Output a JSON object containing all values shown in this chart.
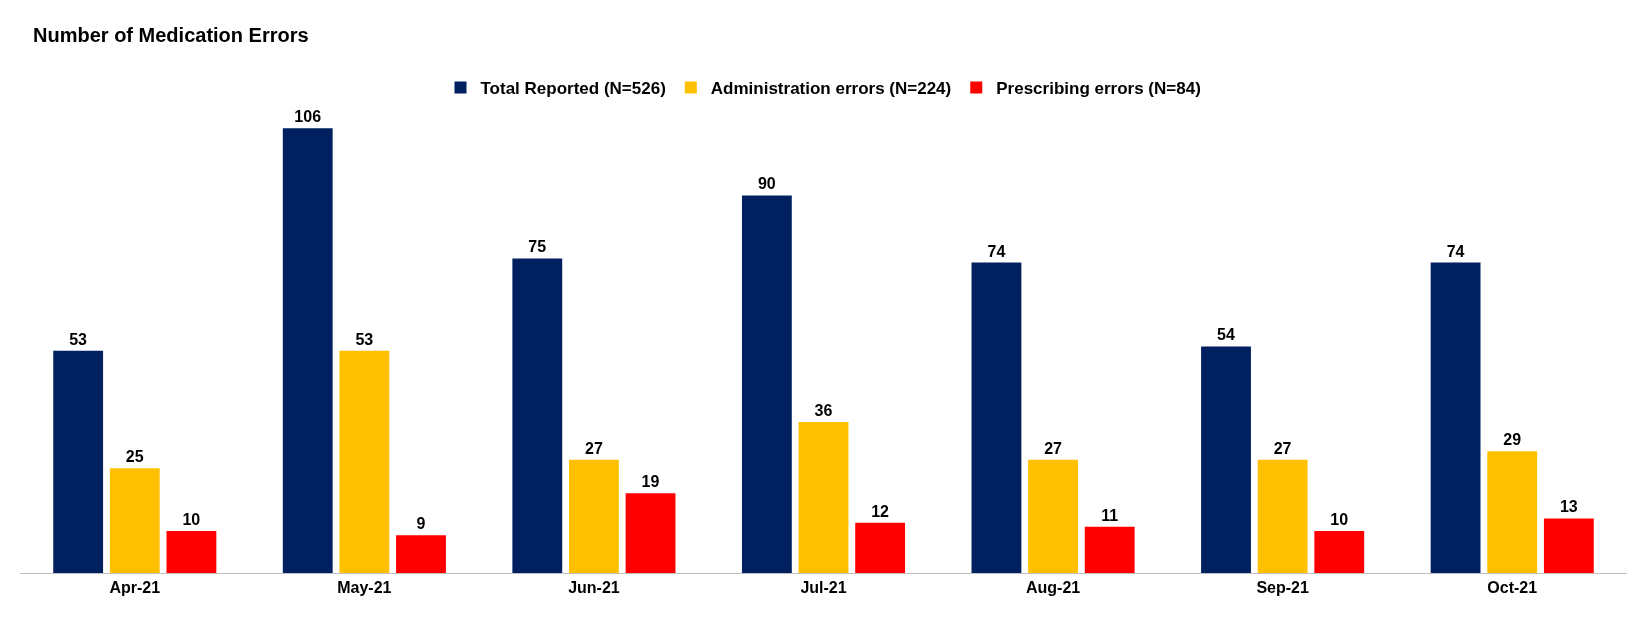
{
  "chart_data": {
    "type": "bar",
    "title": "Number of Medication Errors",
    "categories": [
      "Apr-21",
      "May-21",
      "Jun-21",
      "Jul-21",
      "Aug-21",
      "Sep-21",
      "Oct-21"
    ],
    "series": [
      {
        "name": "Total Reported (N=526)",
        "color": "#002060",
        "values": [
          53,
          106,
          75,
          90,
          74,
          54,
          74
        ]
      },
      {
        "name": "Administration errors (N=224)",
        "color": "#ffc000",
        "values": [
          25,
          53,
          27,
          36,
          27,
          27,
          29
        ]
      },
      {
        "name": "Prescribing errors (N=84)",
        "color": "#ff0000",
        "values": [
          10,
          9,
          19,
          12,
          11,
          10,
          13
        ]
      }
    ],
    "data_labels": true,
    "legend": "top",
    "grid": false,
    "tick_labels": "x"
  }
}
